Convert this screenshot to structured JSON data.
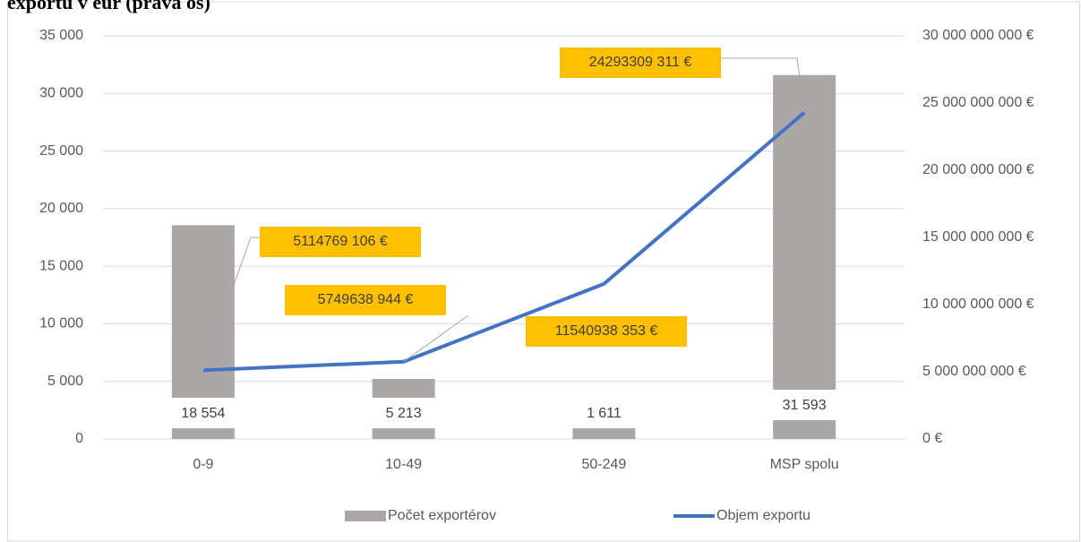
{
  "chart_data": {
    "type": "bar_line",
    "title": "exportu v eur (pravá os)",
    "categories": [
      "0-9",
      "10-49",
      "50-249",
      "MSP spolu"
    ],
    "series": [
      {
        "name": "Počet exportérov",
        "type": "bar",
        "color": "#aba7a6",
        "values": [
          18554,
          5213,
          1611,
          31593
        ],
        "value_labels": [
          "18 554",
          "5 213",
          "1 611",
          "31 593"
        ]
      },
      {
        "name": "Objem exportu",
        "type": "line",
        "axis": "y2",
        "color": "#4472c4",
        "values": [
          5114769106,
          5749638944,
          11540938353,
          24293309311
        ],
        "value_labels": [
          "5114769 106 €",
          "5749638 944 €",
          "11540938 353 €",
          "24293309 311 €"
        ]
      }
    ],
    "ylim": [
      0,
      35000
    ],
    "yticks": [
      0,
      {
        "value": 5000,
        "label": "5 000"
      },
      {
        "value": 10000,
        "label": "10 000"
      },
      {
        "value": 15000,
        "label": "15 000"
      },
      {
        "value": 20000,
        "label": "20 000"
      },
      {
        "value": 25000,
        "label": "25 000"
      },
      {
        "value": 30000,
        "label": "30 000"
      },
      {
        "value": 35000,
        "label": "35 000"
      }
    ],
    "y2lim": [
      0,
      30000000000
    ],
    "y2ticks": [
      {
        "value": 0,
        "label": "0 €"
      },
      {
        "value": 5000000000,
        "label": "5 000 000 000 €"
      },
      {
        "value": 10000000000,
        "label": "10 000 000 000 €"
      },
      {
        "value": 15000000000,
        "label": "15 000 000 000 €"
      },
      {
        "value": 20000000000,
        "label": "20 000 000 000 €"
      },
      {
        "value": 25000000000,
        "label": "25 000 000 000 €"
      },
      {
        "value": 30000000000,
        "label": "30 000 000 000 €"
      }
    ],
    "legend": "bottom"
  }
}
